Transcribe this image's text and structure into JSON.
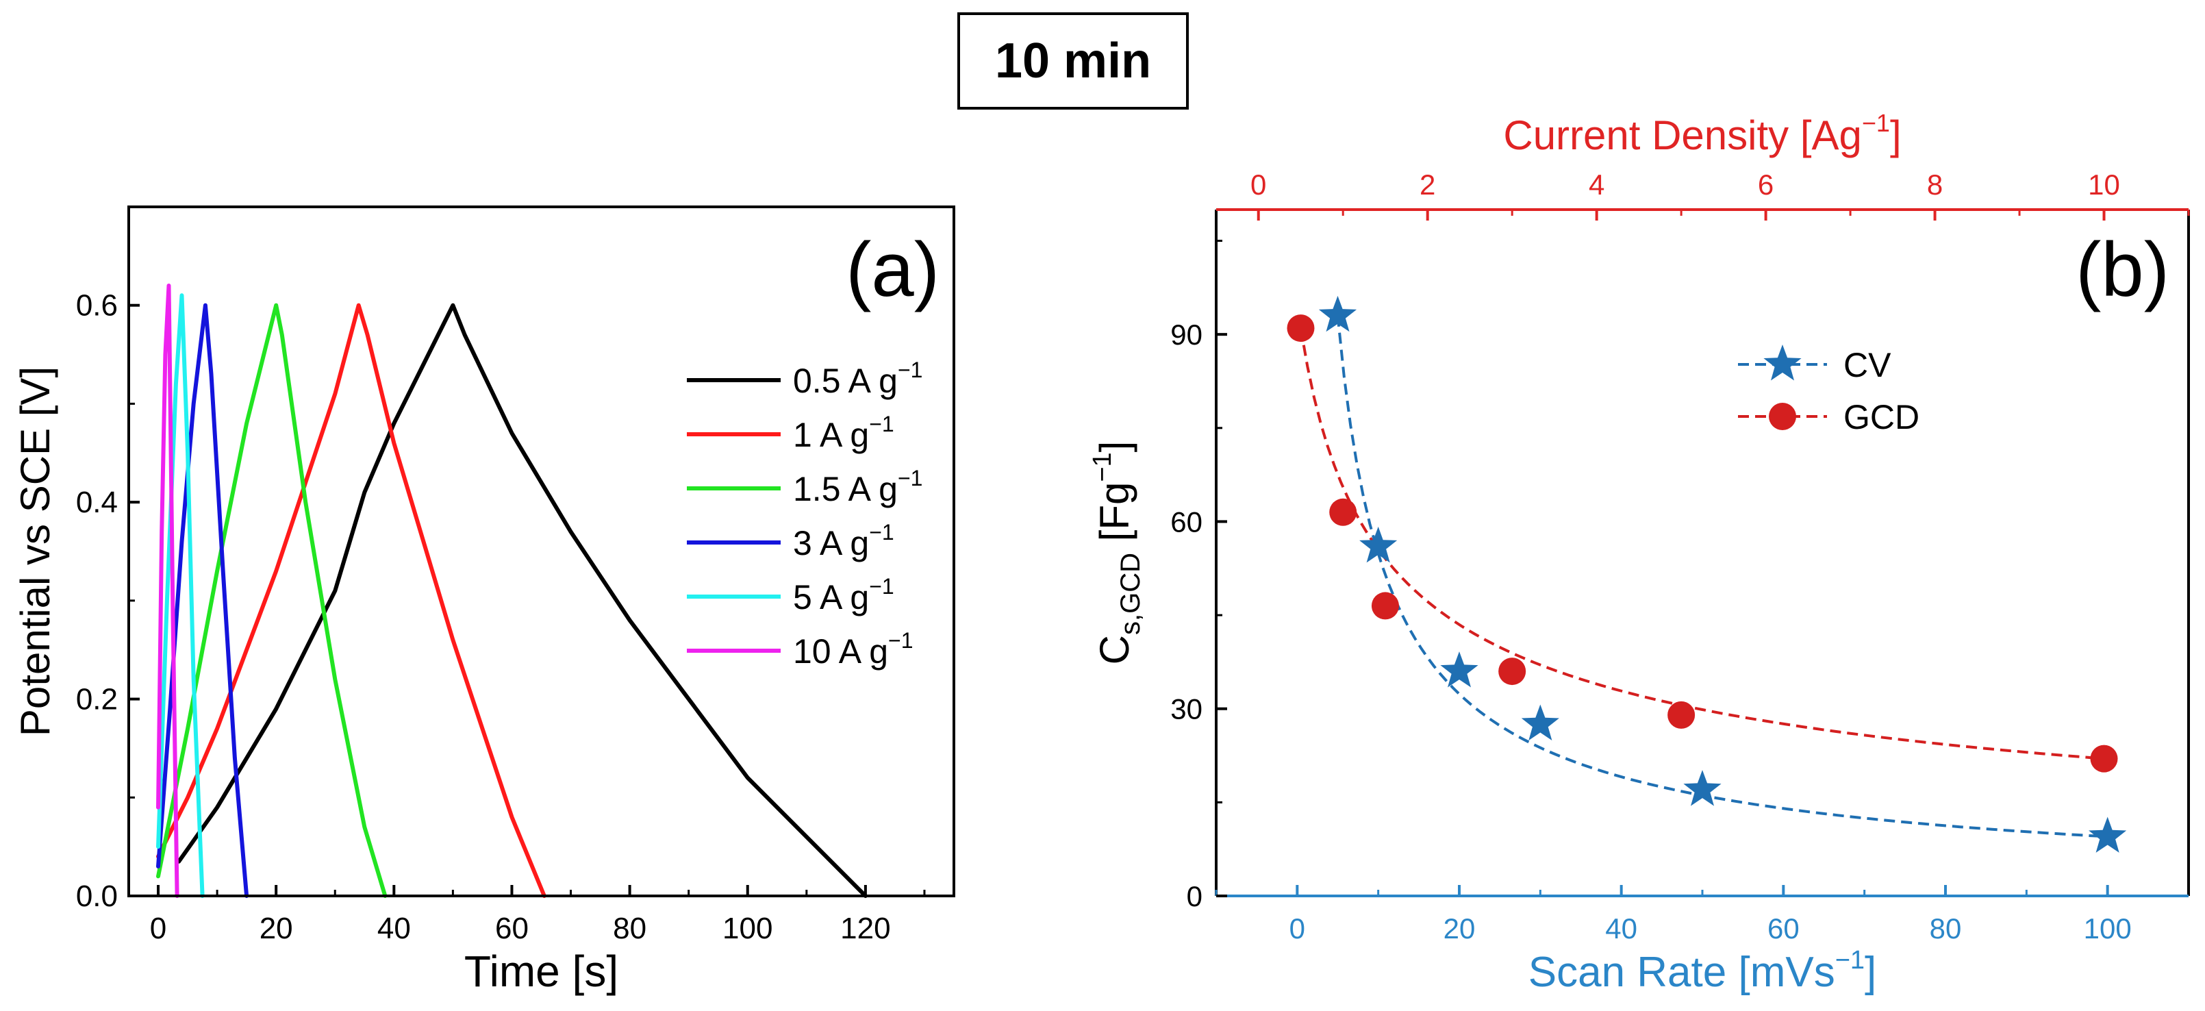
{
  "figure_title": "10 min",
  "colors": {
    "black": "#000000",
    "red": "#ff1a1a",
    "green": "#22e422",
    "blue": "#1414dc",
    "cyan": "#22f0f0",
    "magenta": "#ee22ee",
    "cv": "#1f6fb2",
    "gcd": "#d41f1f",
    "axis_red": "#e02424",
    "axis_blue": "#2b86c8"
  },
  "chart_data": [
    {
      "type": "line",
      "panel_label": "(a)",
      "xlabel": "Time [s]",
      "ylabel": "Potential vs SCE [V]",
      "xlim": [
        -5,
        135
      ],
      "ylim": [
        0,
        0.7
      ],
      "xticks": [
        "0",
        "20",
        "40",
        "60",
        "80",
        "100",
        "120"
      ],
      "yticks": [
        "0.0",
        "0.2",
        "0.4",
        "0.6"
      ],
      "legend_position": "right",
      "series": [
        {
          "name": "0.5 A g",
          "sup": "−1",
          "color": "#000000",
          "x": [
            3.5,
            10,
            20,
            30,
            35,
            40,
            45,
            50,
            52,
            60,
            70,
            80,
            90,
            100,
            110,
            120
          ],
          "y": [
            0.035,
            0.09,
            0.19,
            0.31,
            0.41,
            0.48,
            0.54,
            0.6,
            0.57,
            0.47,
            0.37,
            0.28,
            0.2,
            0.12,
            0.06,
            0.0
          ]
        },
        {
          "name": "1 A g",
          "sup": "−1",
          "color": "#ff1a1a",
          "x": [
            0,
            5,
            10,
            15,
            20,
            25,
            30,
            34,
            35.5,
            40,
            45,
            50,
            55,
            60,
            65.5
          ],
          "y": [
            0.04,
            0.1,
            0.17,
            0.25,
            0.33,
            0.42,
            0.51,
            0.6,
            0.57,
            0.46,
            0.36,
            0.26,
            0.17,
            0.08,
            0.0
          ]
        },
        {
          "name": "1.5 A g",
          "sup": "−1",
          "color": "#22e422",
          "x": [
            0,
            5,
            10,
            15,
            20,
            21,
            25,
            30,
            35,
            38.5
          ],
          "y": [
            0.02,
            0.17,
            0.33,
            0.48,
            0.6,
            0.57,
            0.4,
            0.22,
            0.07,
            0.0
          ]
        },
        {
          "name": "3 A g",
          "sup": "−1",
          "color": "#1414dc",
          "x": [
            0,
            2,
            4,
            6,
            8,
            9,
            11,
            13,
            15
          ],
          "y": [
            0.03,
            0.19,
            0.36,
            0.5,
            0.6,
            0.53,
            0.33,
            0.14,
            0.0
          ]
        },
        {
          "name": "5 A g",
          "sup": "−1",
          "color": "#22f0f0",
          "x": [
            0,
            1.5,
            3,
            4,
            5,
            6,
            7.5
          ],
          "y": [
            0.05,
            0.3,
            0.52,
            0.61,
            0.45,
            0.22,
            0.0
          ]
        },
        {
          "name": "10 A g",
          "sup": "−1",
          "color": "#ee22ee",
          "x": [
            0,
            0.6,
            1.2,
            1.8,
            2.5,
            3.2
          ],
          "y": [
            0.09,
            0.37,
            0.55,
            0.62,
            0.28,
            0.0
          ]
        }
      ]
    },
    {
      "type": "scatter",
      "panel_label": "(b)",
      "xlabel": "Scan Rate [mVs",
      "xlabel_sup": "−1",
      "xlabel_end": "]",
      "x2label": "Current Density [Ag",
      "x2label_sup": "−1",
      "x2label_end": "]",
      "ylabel_main": "C",
      "ylabel_sub": "s,GCD",
      "ylabel_unit": " [Fg",
      "ylabel_sup": "−1",
      "ylabel_end": "]",
      "xlim": [
        -10,
        110
      ],
      "x2lim": [
        -0.5,
        11
      ],
      "ylim": [
        0,
        110
      ],
      "xticks": [
        "0",
        "20",
        "40",
        "60",
        "80",
        "100"
      ],
      "x2ticks": [
        "0",
        "2",
        "4",
        "6",
        "8",
        "10"
      ],
      "yticks": [
        "0",
        "30",
        "60",
        "90"
      ],
      "legend_position": "upper center",
      "series": [
        {
          "name": "CV",
          "marker": "star",
          "color": "#1f6fb2",
          "axis": "bottom",
          "x": [
            5,
            10,
            20,
            30,
            50,
            100
          ],
          "y": [
            93,
            56,
            36,
            27.5,
            17,
            9.5
          ]
        },
        {
          "name": "GCD",
          "marker": "circle",
          "color": "#d41f1f",
          "axis": "top",
          "x": [
            0.5,
            1,
            1.5,
            3,
            5,
            10
          ],
          "y": [
            91,
            61.5,
            46.5,
            36,
            29,
            22
          ]
        }
      ]
    }
  ]
}
